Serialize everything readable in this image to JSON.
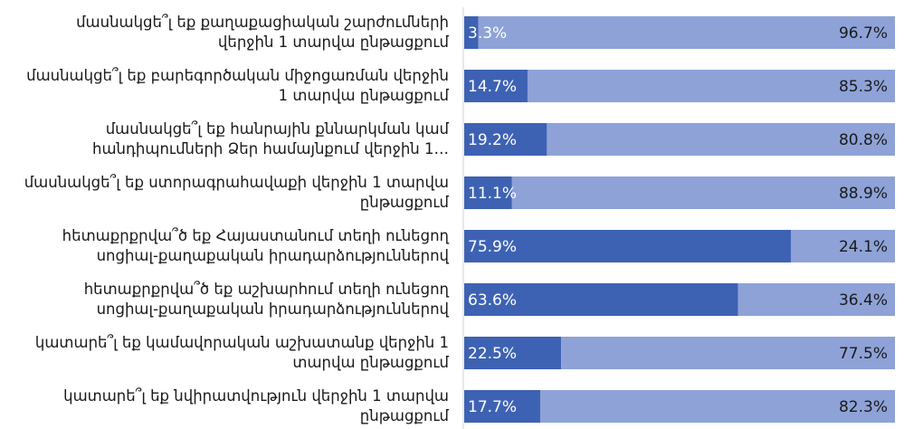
{
  "chart_data": {
    "type": "stacked-bar-horizontal",
    "categories": [
      "մասնակցե՞լ եք քաղաքացիական շարժումների\nվերջին 1 տարվա ընթացքում",
      "մասնակցե՞լ եք բարեգործական միջոցառման վերջին\n1 տարվա ընթացքում",
      "մասնակցե՞լ եք հանրային քննարկման կամ\nհանդիպումների Ձեր համայնքում վերջին 1…",
      "մասնակցե՞լ եք ստորագրահավաքի վերջին 1 տարվա\nընթացքում",
      "հետաքրքրվա՞ծ եք Հայաստանում տեղի ունեցող\nսոցիալ-քաղաքական իրադարձություններով",
      "հետաքրքրվա՞ծ եք աշխարհում տեղի ունեցող\nսոցիալ-քաղաքական իրադարձություններով",
      "կատարե՞լ եք կամավորական աշխատանք վերջին 1\nտարվա ընթացքում",
      "կատարե՞լ եք նվիրատվություն վերջին 1 տարվա\nընթացքում"
    ],
    "series": [
      {
        "color": "#3e62b3",
        "label_color": "#ffffff",
        "values": [
          3.3,
          14.7,
          19.2,
          11.1,
          75.9,
          63.6,
          22.5,
          17.7
        ],
        "value_labels": [
          "3.3%",
          "14.7%",
          "19.2%",
          "11.1%",
          "75.9%",
          "63.6%",
          "22.5%",
          "17.7%"
        ]
      },
      {
        "color": "#8ea2d7",
        "label_color": "#1a1a1a",
        "values": [
          96.7,
          85.3,
          80.8,
          88.9,
          24.1,
          36.4,
          77.5,
          82.3
        ],
        "value_labels": [
          "96.7%",
          "85.3%",
          "80.8%",
          "88.9%",
          "24.1%",
          "36.4%",
          "77.5%",
          "82.3%"
        ]
      }
    ],
    "xlim": [
      0,
      100
    ]
  }
}
